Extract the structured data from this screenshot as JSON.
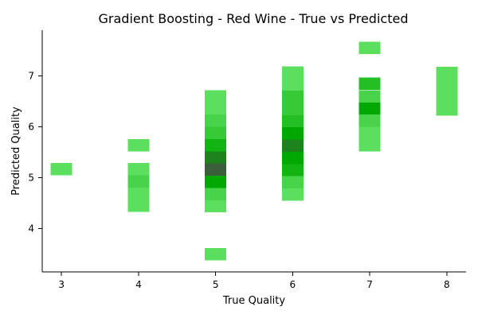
{
  "chart_data": {
    "type": "heatmap",
    "title": "Gradient Boosting - Red Wine - True vs Predicted",
    "xlabel": "True Quality",
    "ylabel": "Predicted Quality",
    "xlim": [
      2.75,
      8.25
    ],
    "ylim": [
      3.15,
      7.9
    ],
    "xticks": [
      3,
      4,
      5,
      6,
      7,
      8
    ],
    "yticks": [
      4,
      5,
      6,
      7
    ],
    "bin_width": 0.28,
    "bin_height": 0.24,
    "color_scale": {
      "low": "#5cde5e",
      "mid": "#00a900",
      "high": "#3a5f3a"
    },
    "cells": [
      {
        "x": 3,
        "y": 5.17,
        "count": 1
      },
      {
        "x": 4,
        "y": 5.64,
        "count": 1
      },
      {
        "x": 4,
        "y": 5.17,
        "count": 1
      },
      {
        "x": 4,
        "y": 4.93,
        "count": 2
      },
      {
        "x": 4,
        "y": 4.69,
        "count": 1
      },
      {
        "x": 4,
        "y": 4.45,
        "count": 1
      },
      {
        "x": 5,
        "y": 6.6,
        "count": 1
      },
      {
        "x": 5,
        "y": 6.36,
        "count": 1
      },
      {
        "x": 5,
        "y": 6.12,
        "count": 2
      },
      {
        "x": 5,
        "y": 5.88,
        "count": 3
      },
      {
        "x": 5,
        "y": 5.64,
        "count": 5
      },
      {
        "x": 5,
        "y": 5.4,
        "count": 8
      },
      {
        "x": 5,
        "y": 5.16,
        "count": 10
      },
      {
        "x": 5,
        "y": 4.92,
        "count": 6
      },
      {
        "x": 5,
        "y": 4.68,
        "count": 2
      },
      {
        "x": 5,
        "y": 4.44,
        "count": 1
      },
      {
        "x": 5,
        "y": 3.5,
        "count": 1
      },
      {
        "x": 6,
        "y": 7.07,
        "count": 1
      },
      {
        "x": 6,
        "y": 6.83,
        "count": 1
      },
      {
        "x": 6,
        "y": 6.59,
        "count": 3
      },
      {
        "x": 6,
        "y": 6.35,
        "count": 3
      },
      {
        "x": 6,
        "y": 6.11,
        "count": 4
      },
      {
        "x": 6,
        "y": 5.87,
        "count": 6
      },
      {
        "x": 6,
        "y": 5.63,
        "count": 8
      },
      {
        "x": 6,
        "y": 5.39,
        "count": 6
      },
      {
        "x": 6,
        "y": 5.15,
        "count": 5
      },
      {
        "x": 6,
        "y": 4.91,
        "count": 2
      },
      {
        "x": 6,
        "y": 4.67,
        "count": 1
      },
      {
        "x": 7,
        "y": 7.55,
        "count": 1
      },
      {
        "x": 7,
        "y": 6.85,
        "count": 4
      },
      {
        "x": 7,
        "y": 6.6,
        "count": 2
      },
      {
        "x": 7,
        "y": 6.36,
        "count": 6
      },
      {
        "x": 7,
        "y": 6.12,
        "count": 2
      },
      {
        "x": 7,
        "y": 5.88,
        "count": 1
      },
      {
        "x": 7,
        "y": 5.64,
        "count": 1
      },
      {
        "x": 8,
        "y": 7.06,
        "count": 1
      },
      {
        "x": 8,
        "y": 6.82,
        "count": 1
      },
      {
        "x": 8,
        "y": 6.58,
        "count": 1
      },
      {
        "x": 8,
        "y": 6.34,
        "count": 1
      }
    ]
  }
}
